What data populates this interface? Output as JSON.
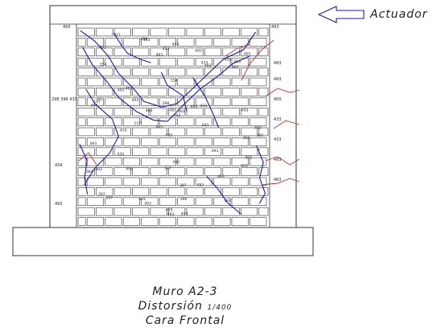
{
  "actuator": {
    "label": "Actuador"
  },
  "caption": {
    "line1": "Muro A2-3",
    "line2_text": "Distorsión",
    "line2_ratio": "1/400",
    "line3": "Cara Frontal"
  },
  "wall": {
    "courses": 20,
    "bricks_per_course": 10
  },
  "crack_labels": [
    "397",
    "493",
    "493",
    "157",
    "397",
    "493",
    "493",
    "427",
    "493",
    "493",
    "493",
    "384",
    "397",
    "493",
    "493",
    "493",
    "397",
    "493",
    "493",
    "493",
    "298",
    "396",
    "493",
    "197",
    "493",
    "493",
    "493",
    "493",
    "493",
    "493",
    "493",
    "493",
    "433",
    "397",
    "433",
    "493",
    "493",
    "493",
    "197",
    "493",
    "433",
    "493",
    "433",
    "493",
    "493",
    "493",
    "434",
    "493",
    "493",
    "493",
    "493",
    "493",
    "154",
    "154",
    "154",
    "493",
    "493",
    "493",
    "493",
    "493"
  ],
  "side_labels": {
    "top_right": "493",
    "right": [
      "493",
      "493",
      "400",
      "433",
      "433",
      "493",
      "493"
    ],
    "left": [
      "298 396 433",
      "434",
      "493"
    ],
    "top_left": "493"
  },
  "colors": {
    "crack_blue": "#1a1aa6",
    "crack_red": "#c0302a",
    "line": "#333333"
  }
}
